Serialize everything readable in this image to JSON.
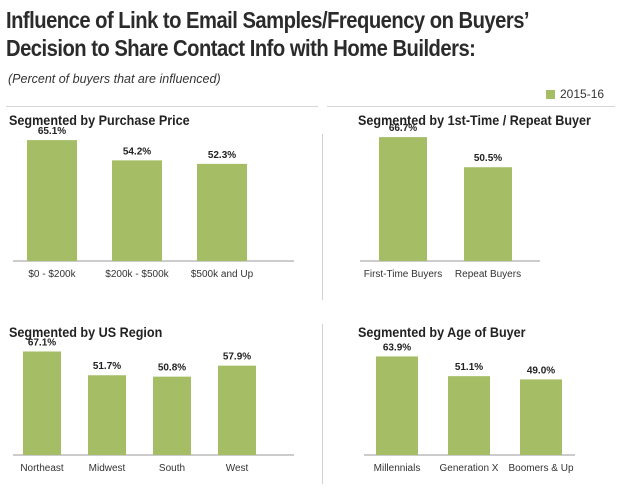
{
  "title_line1": "Influence of Link to Email Samples/Frequency on Buyers’",
  "title_line2": "Decision to Share Contact Info with Home Builders:",
  "subtitle": "(Percent of buyers that are influenced)",
  "legend_label": "2015-16",
  "colors": {
    "bar": "#a5be66",
    "axis": "#9a9a9a",
    "separator": "#d0d0d0"
  },
  "chart_data": [
    {
      "type": "bar",
      "title": "Segmented by Purchase Price",
      "categories": [
        "$0 - $200k",
        "$200k - $500k",
        "$500k and Up"
      ],
      "series": [
        {
          "name": "2015-16",
          "values": [
            65.1,
            54.2,
            52.3
          ]
        }
      ],
      "data_labels": [
        "65.1%",
        "54.2%",
        "52.3%"
      ],
      "xlabel": "",
      "ylabel": "",
      "ylim": [
        0,
        100
      ],
      "legend": "top-right",
      "grid": false
    },
    {
      "type": "bar",
      "title": "Segmented by 1st-Time / Repeat Buyer",
      "categories": [
        "First-Time Buyers",
        "Repeat Buyers"
      ],
      "series": [
        {
          "name": "2015-16",
          "values": [
            66.7,
            50.5
          ]
        }
      ],
      "data_labels": [
        "66.7%",
        "50.5%"
      ],
      "xlabel": "",
      "ylabel": "",
      "ylim": [
        0,
        100
      ],
      "legend": "top-right",
      "grid": false
    },
    {
      "type": "bar",
      "title": "Segmented by US Region",
      "categories": [
        "Northeast",
        "Midwest",
        "South",
        "West"
      ],
      "series": [
        {
          "name": "2015-16",
          "values": [
            67.1,
            51.7,
            50.8,
            57.9
          ]
        }
      ],
      "data_labels": [
        "67.1%",
        "51.7%",
        "50.8%",
        "57.9%"
      ],
      "xlabel": "",
      "ylabel": "",
      "ylim": [
        0,
        100
      ],
      "legend": "top-right",
      "grid": false
    },
    {
      "type": "bar",
      "title": "Segmented by Age of Buyer",
      "categories": [
        "Millennials",
        "Generation X",
        "Boomers & Up"
      ],
      "series": [
        {
          "name": "2015-16",
          "values": [
            63.9,
            51.1,
            49.0
          ]
        }
      ],
      "data_labels": [
        "63.9%",
        "51.1%",
        "49.0%"
      ],
      "xlabel": "",
      "ylabel": "",
      "ylim": [
        0,
        100
      ],
      "legend": "top-right",
      "grid": false
    }
  ]
}
